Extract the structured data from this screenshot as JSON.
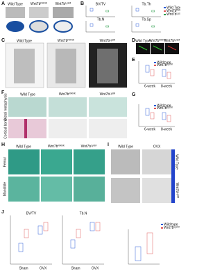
{
  "panel_letters": [
    "A",
    "B",
    "C",
    "D",
    "E",
    "F",
    "G",
    "H",
    "I",
    "J"
  ],
  "a": {
    "cols": [
      "Wild Type",
      {
        "base": "Wnt7b",
        "sup": "RANK"
      },
      {
        "base": "Wnt7b",
        "sup": "LysM"
      }
    ]
  },
  "b": {
    "titles": [
      "BV/TV",
      "Tb.Th",
      "Tb.N",
      "Tb.Sp"
    ],
    "legend": [
      "Wild Type",
      {
        "base": "Wnt7b",
        "sup": "RANK"
      },
      {
        "base": "Wnt7b",
        "sup": "LysM"
      }
    ]
  },
  "c": {
    "cols": [
      "Wild Type",
      {
        "base": "Wnt7b",
        "sup": "RANK"
      },
      {
        "base": "Wnt7b",
        "sup": "LysM"
      }
    ]
  },
  "d": {
    "cols": [
      "Wild Type",
      {
        "base": "Wnt7b",
        "sup": "RANK"
      },
      {
        "base": "Wnt7b",
        "sup": "LysM"
      }
    ]
  },
  "e": {
    "categories": [
      "6-week",
      "8-week"
    ],
    "legend": [
      "Wild type",
      {
        "base": "Wnt7b",
        "sup": "LysM"
      }
    ]
  },
  "f": {
    "cols": [
      "Wild Type",
      {
        "base": "Wnt7b",
        "sup": "RANK"
      },
      {
        "base": "Wnt7b",
        "sup": "LysM"
      }
    ],
    "rows": [
      "Distal metaphysis",
      "Cortical bone"
    ]
  },
  "g": {
    "categories": [
      "6-week",
      "8-week"
    ],
    "legend": [
      "Wild type",
      {
        "base": "Wnt7b",
        "sup": "LysM"
      }
    ]
  },
  "h": {
    "cols": [
      "Wild Type",
      {
        "base": "Wnt7b",
        "sup": "RANK"
      },
      {
        "base": "Wnt7b",
        "sup": "LysM"
      }
    ],
    "rows": [
      "Femur",
      "Mandible"
    ]
  },
  "i": {
    "cols": [
      "Wild Type",
      "OVX"
    ],
    "rows": [
      "Wild Type",
      {
        "base": "Wnt7b",
        "sup": "LysM"
      }
    ]
  },
  "j": {
    "titles": [
      "BV/TV",
      "Tb.N"
    ],
    "categories": [
      "Sham",
      "OVX",
      "Sham",
      "OVX"
    ],
    "legend": [
      "Wild type",
      {
        "base": "Wnt7b",
        "sup": "LysM"
      }
    ]
  }
}
